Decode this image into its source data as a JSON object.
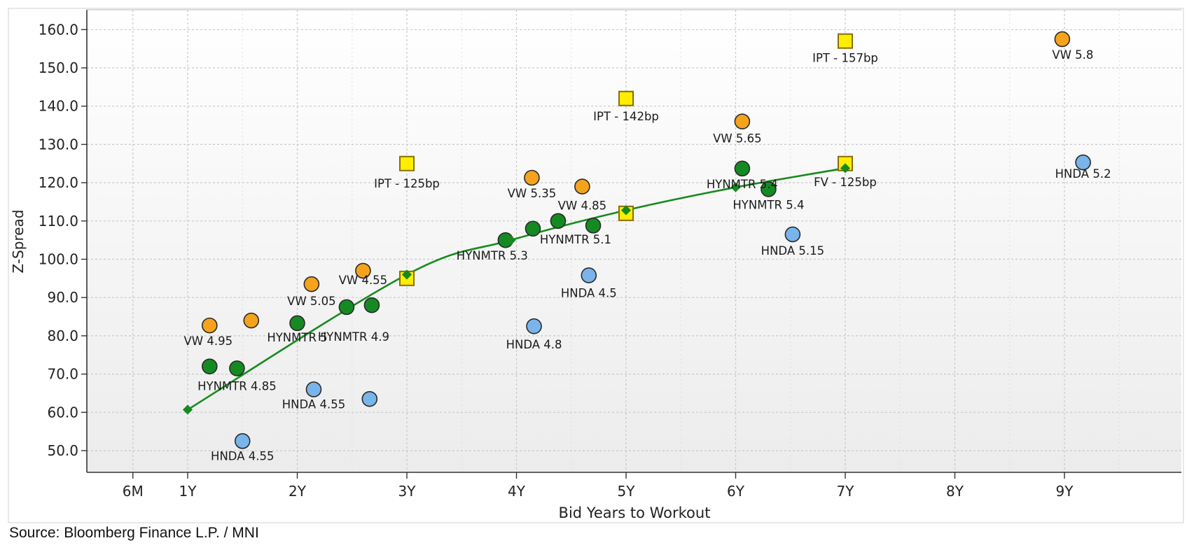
{
  "source_text": "Source: Bloomberg Finance L.P. / MNI",
  "colors": {
    "vw": "#f5a31c",
    "hynmtr": "#158a23",
    "hnda": "#79b4ea",
    "ipt": "#ffee00",
    "curve": "#178a1f",
    "grid": "#c8c8c8",
    "outline": "#2a2a2a"
  },
  "chart_data": {
    "type": "scatter",
    "xlabel": "Bid Years to Workout",
    "ylabel": "Z-Spread",
    "xlim": [
      0,
      10.5
    ],
    "ylim": [
      45,
      165
    ],
    "grid": true,
    "x_ticks": [
      {
        "value": 0.5,
        "label": "6M"
      },
      {
        "value": 1,
        "label": "1Y"
      },
      {
        "value": 2,
        "label": "2Y"
      },
      {
        "value": 3,
        "label": "3Y"
      },
      {
        "value": 4,
        "label": "4Y"
      },
      {
        "value": 5,
        "label": "5Y"
      },
      {
        "value": 6,
        "label": "6Y"
      },
      {
        "value": 7,
        "label": "7Y"
      },
      {
        "value": 8,
        "label": "8Y"
      },
      {
        "value": 9,
        "label": "9Y"
      }
    ],
    "y_ticks": [
      {
        "value": 50,
        "label": "50.0"
      },
      {
        "value": 60,
        "label": "60.0"
      },
      {
        "value": 70,
        "label": "70.0"
      },
      {
        "value": 80,
        "label": "80.0"
      },
      {
        "value": 90,
        "label": "90.0"
      },
      {
        "value": 100,
        "label": "100.0"
      },
      {
        "value": 110,
        "label": "110.0"
      },
      {
        "value": 120,
        "label": "120.0"
      },
      {
        "value": 130,
        "label": "130.0"
      },
      {
        "value": 140,
        "label": "140.0"
      },
      {
        "value": 150,
        "label": "150.0"
      },
      {
        "value": 160,
        "label": "160.0"
      }
    ],
    "series": [
      {
        "name": "VW",
        "marker": "circle",
        "color_key": "vw",
        "points": [
          {
            "x": 1.2,
            "y": 82.7,
            "label": "VW 4.95"
          },
          {
            "x": 1.58,
            "y": 84.0,
            "label": ""
          },
          {
            "x": 2.13,
            "y": 93.5,
            "label": "VW 5.05"
          },
          {
            "x": 2.6,
            "y": 97.0,
            "label": "VW 4.55"
          },
          {
            "x": 4.14,
            "y": 121.3,
            "label": "VW 5.35"
          },
          {
            "x": 4.6,
            "y": 119.0,
            "label": "VW 4.85"
          },
          {
            "x": 6.06,
            "y": 136.0,
            "label": "VW 5.65"
          },
          {
            "x": 8.98,
            "y": 157.5,
            "label": "VW 5.8"
          }
        ]
      },
      {
        "name": "HYNMTR",
        "marker": "circle",
        "color_key": "hynmtr",
        "points": [
          {
            "x": 1.2,
            "y": 72.0,
            "label": ""
          },
          {
            "x": 1.45,
            "y": 71.5,
            "label": "HYNMTR 4.85"
          },
          {
            "x": 2.0,
            "y": 83.3,
            "label": "HYNMTR 5"
          },
          {
            "x": 2.45,
            "y": 87.5,
            "label": ""
          },
          {
            "x": 2.68,
            "y": 88.0,
            "label": "HYNMTR 4.9"
          },
          {
            "x": 3.9,
            "y": 105.0,
            "label": "HYNMTR 5.3"
          },
          {
            "x": 4.15,
            "y": 108.0,
            "label": ""
          },
          {
            "x": 4.38,
            "y": 110.0,
            "label": "HYNMTR 5.1"
          },
          {
            "x": 4.7,
            "y": 108.8,
            "label": ""
          },
          {
            "x": 6.06,
            "y": 123.7,
            "label": "HYNMTR 5.4"
          },
          {
            "x": 6.3,
            "y": 118.3,
            "label": "HYNMTR 5.4"
          }
        ]
      },
      {
        "name": "HNDA",
        "marker": "circle",
        "color_key": "hnda",
        "points": [
          {
            "x": 1.5,
            "y": 52.5,
            "label": "HNDA 4.55"
          },
          {
            "x": 2.15,
            "y": 66.0,
            "label": "HNDA 4.55"
          },
          {
            "x": 2.66,
            "y": 63.5,
            "label": ""
          },
          {
            "x": 4.16,
            "y": 82.5,
            "label": "HNDA 4.8"
          },
          {
            "x": 4.66,
            "y": 95.8,
            "label": "HNDA 4.5"
          },
          {
            "x": 6.52,
            "y": 106.5,
            "label": "HNDA 5.15"
          },
          {
            "x": 9.17,
            "y": 125.3,
            "label": "HNDA 5.2"
          }
        ]
      },
      {
        "name": "IPT",
        "marker": "square",
        "color_key": "ipt",
        "points": [
          {
            "x": 3.0,
            "y": 125.0,
            "label": "IPT - 125bp"
          },
          {
            "x": 5.0,
            "y": 142.0,
            "label": "IPT - 142bp"
          },
          {
            "x": 7.0,
            "y": 157.0,
            "label": "IPT - 157bp"
          },
          {
            "x": 7.0,
            "y": 125.0,
            "label": "FV - 125bp"
          },
          {
            "x": 3.0,
            "y": 95.0,
            "label": ""
          },
          {
            "x": 5.0,
            "y": 112.0,
            "label": ""
          }
        ]
      },
      {
        "name": "Curve",
        "marker": "line",
        "color_key": "curve",
        "points": [
          {
            "x": 1.0,
            "y": 60.7,
            "label": ""
          },
          {
            "x": 3.0,
            "y": 96.0,
            "label": ""
          },
          {
            "x": 3.95,
            "y": 105.0,
            "label": ""
          },
          {
            "x": 5.0,
            "y": 112.8,
            "label": ""
          },
          {
            "x": 6.0,
            "y": 118.8,
            "label": ""
          },
          {
            "x": 7.0,
            "y": 123.8,
            "label": ""
          }
        ]
      }
    ]
  }
}
